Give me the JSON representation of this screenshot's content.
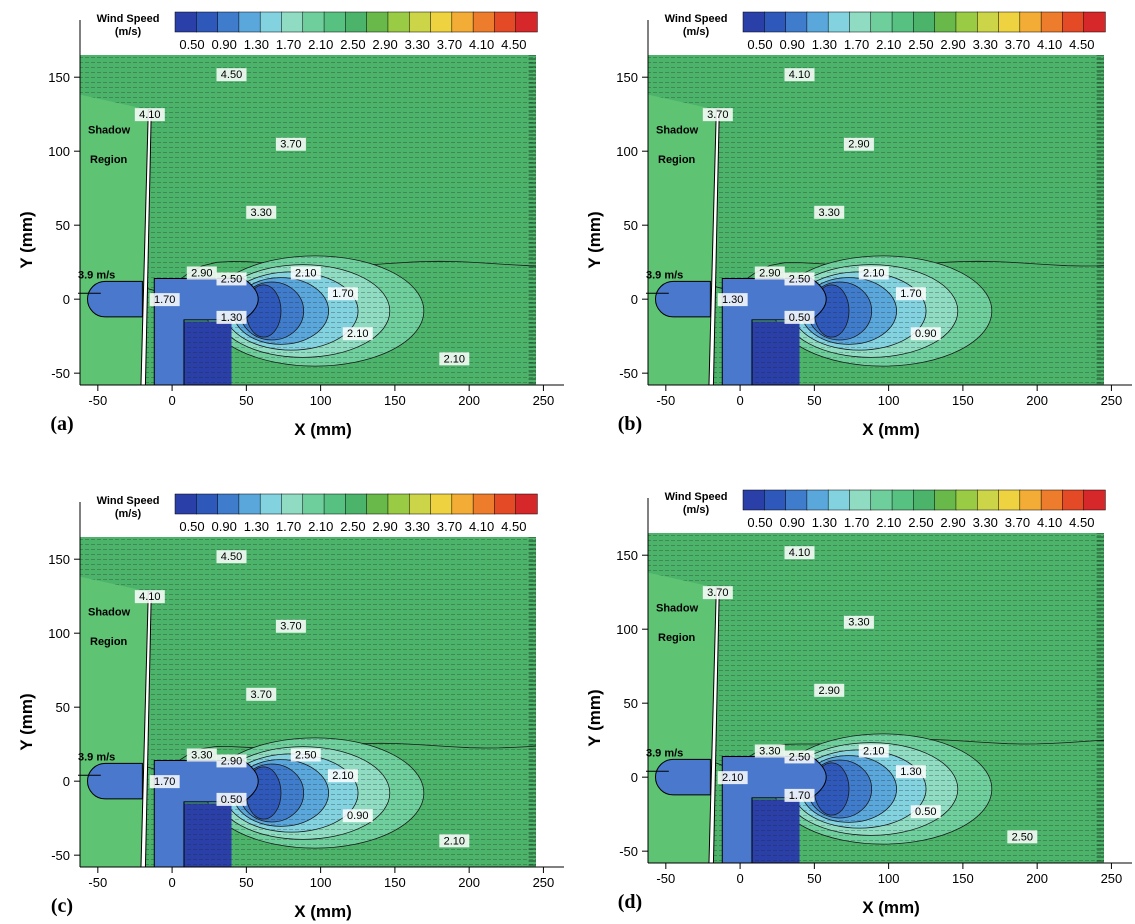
{
  "chart_data": [
    {
      "type": "heatmap",
      "panel_label": "(a)",
      "title": "",
      "xlabel": "X (mm)",
      "ylabel": "Y (mm)",
      "xlim": [
        -62,
        245
      ],
      "ylim": [
        -58,
        165
      ],
      "x_ticks": [
        "-50",
        "0",
        "50",
        "100",
        "150",
        "200",
        "250"
      ],
      "y_ticks": [
        "-50",
        "0",
        "50",
        "100",
        "150"
      ],
      "colorbar": {
        "title": "Wind Speed",
        "unit": "(m/s)",
        "ticks": [
          "0.50",
          "0.90",
          "1.30",
          "1.70",
          "2.10",
          "2.50",
          "2.90",
          "3.30",
          "3.70",
          "4.10",
          "4.50"
        ],
        "colors": [
          "#2a3fa8",
          "#2f58bb",
          "#3f7ccc",
          "#5aa7dc",
          "#82d2e0",
          "#8fdcc2",
          "#6fcf9c",
          "#56c181",
          "#4cb46a",
          "#68b94a",
          "#9acb45",
          "#cbd547",
          "#eed23f",
          "#f3ac35",
          "#ed7d2c",
          "#e44a26",
          "#d6272a"
        ]
      },
      "annotations": [
        "Shadow",
        "Region",
        "3.9 m/s"
      ],
      "contour_labels": [
        "4.50",
        "4.10",
        "3.70",
        "3.30",
        "2.90",
        "2.50",
        "2.10",
        "1.70",
        "1.70",
        "1.30",
        "2.10",
        "2.10"
      ]
    },
    {
      "type": "heatmap",
      "panel_label": "(b)",
      "title": "",
      "xlabel": "X (mm)",
      "ylabel": "Y (mm)",
      "xlim": [
        -62,
        245
      ],
      "ylim": [
        -58,
        165
      ],
      "x_ticks": [
        "-50",
        "0",
        "50",
        "100",
        "150",
        "200",
        "250"
      ],
      "y_ticks": [
        "-50",
        "0",
        "50",
        "100",
        "150"
      ],
      "colorbar": {
        "title": "Wind Speed",
        "unit": "(m/s)",
        "ticks": [
          "0.50",
          "0.90",
          "1.30",
          "1.70",
          "2.10",
          "2.50",
          "2.90",
          "3.30",
          "3.70",
          "4.10",
          "4.50"
        ],
        "colors": [
          "#2a3fa8",
          "#2f58bb",
          "#3f7ccc",
          "#5aa7dc",
          "#82d2e0",
          "#8fdcc2",
          "#6fcf9c",
          "#56c181",
          "#4cb46a",
          "#68b94a",
          "#9acb45",
          "#cbd547",
          "#eed23f",
          "#f3ac35",
          "#ed7d2c",
          "#e44a26",
          "#d6272a"
        ]
      },
      "annotations": [
        "Shadow",
        "Region",
        "3.9 m/s"
      ],
      "contour_labels": [
        "4.10",
        "3.70",
        "2.90",
        "3.30",
        "2.90",
        "2.50",
        "2.10",
        "1.70",
        "1.30",
        "0.50",
        "0.90"
      ]
    },
    {
      "type": "heatmap",
      "panel_label": "(c)",
      "title": "",
      "xlabel": "X (mm)",
      "ylabel": "Y (mm)",
      "xlim": [
        -62,
        245
      ],
      "ylim": [
        -58,
        165
      ],
      "x_ticks": [
        "-50",
        "0",
        "50",
        "100",
        "150",
        "200",
        "250"
      ],
      "y_ticks": [
        "-50",
        "0",
        "50",
        "100",
        "150"
      ],
      "colorbar": {
        "title": "Wind Speed",
        "unit": "(m/s)",
        "ticks": [
          "0.50",
          "0.90",
          "1.30",
          "1.70",
          "2.10",
          "2.50",
          "2.90",
          "3.30",
          "3.70",
          "4.10",
          "4.50"
        ],
        "colors": [
          "#2a3fa8",
          "#2f58bb",
          "#3f7ccc",
          "#5aa7dc",
          "#82d2e0",
          "#8fdcc2",
          "#6fcf9c",
          "#56c181",
          "#4cb46a",
          "#68b94a",
          "#9acb45",
          "#cbd547",
          "#eed23f",
          "#f3ac35",
          "#ed7d2c",
          "#e44a26",
          "#d6272a"
        ]
      },
      "annotations": [
        "Shadow",
        "Region",
        "3.9 m/s"
      ],
      "contour_labels": [
        "4.50",
        "4.10",
        "3.70",
        "3.70",
        "3.30",
        "2.90",
        "2.50",
        "2.10",
        "1.70",
        "0.50",
        "0.90",
        "2.10"
      ]
    },
    {
      "type": "heatmap",
      "panel_label": "(d)",
      "title": "",
      "xlabel": "X (mm)",
      "ylabel": "Y (mm)",
      "xlim": [
        -62,
        245
      ],
      "ylim": [
        -58,
        165
      ],
      "x_ticks": [
        "-50",
        "0",
        "50",
        "100",
        "150",
        "200",
        "250"
      ],
      "y_ticks": [
        "-50",
        "0",
        "50",
        "100",
        "150"
      ],
      "colorbar": {
        "title": "Wind Speed",
        "unit": "(m/s)",
        "ticks": [
          "0.50",
          "0.90",
          "1.30",
          "1.70",
          "2.10",
          "2.50",
          "2.90",
          "3.30",
          "3.70",
          "4.10",
          "4.50"
        ],
        "colors": [
          "#2a3fa8",
          "#2f58bb",
          "#3f7ccc",
          "#5aa7dc",
          "#82d2e0",
          "#8fdcc2",
          "#6fcf9c",
          "#56c181",
          "#4cb46a",
          "#68b94a",
          "#9acb45",
          "#cbd547",
          "#eed23f",
          "#f3ac35",
          "#ed7d2c",
          "#e44a26",
          "#d6272a"
        ]
      },
      "annotations": [
        "Shadow",
        "Region",
        "3.9 m/s"
      ],
      "contour_labels": [
        "4.10",
        "3.70",
        "3.30",
        "2.90",
        "3.30",
        "2.50",
        "2.10",
        "1.30",
        "2.10",
        "1.70",
        "0.50",
        "2.50"
      ]
    }
  ]
}
